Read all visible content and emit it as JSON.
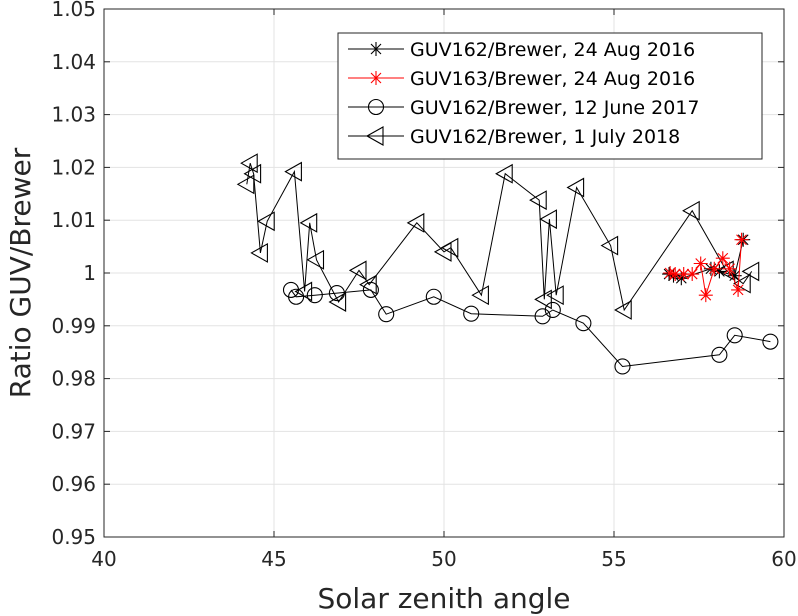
{
  "chart_data": {
    "type": "line",
    "title": "",
    "xlabel": "Solar zenith angle",
    "ylabel": "Ratio GUV/Brewer",
    "xlim": [
      40,
      60
    ],
    "ylim": [
      0.95,
      1.05
    ],
    "xticks": [
      "40",
      "45",
      "50",
      "55",
      "60"
    ],
    "yticks": [
      "0.95",
      "0.96",
      "0.97",
      "0.98",
      "0.99",
      "1",
      "1.01",
      "1.02",
      "1.03",
      "1.04",
      "1.05"
    ],
    "grid": true,
    "legend_position": "top-right",
    "series": [
      {
        "name": "GUV162/Brewer, 24 Aug 2016",
        "color": "#000000",
        "marker": "asterisk",
        "points": [
          [
            56.62,
            0.9998
          ],
          [
            56.75,
            0.9995
          ],
          [
            56.98,
            0.999
          ],
          [
            57.85,
            1.0008
          ],
          [
            58.1,
            1.0003
          ],
          [
            58.55,
            0.9995
          ],
          [
            58.8,
            1.0063
          ]
        ]
      },
      {
        "name": "GUV163/Brewer, 24 Aug 2016",
        "color": "#ff0000",
        "marker": "asterisk",
        "points": [
          [
            56.65,
            1.0
          ],
          [
            56.8,
            0.9998
          ],
          [
            57.05,
            0.9998
          ],
          [
            57.3,
            0.9998
          ],
          [
            57.55,
            1.0018
          ],
          [
            57.7,
            0.9958
          ],
          [
            57.95,
            1.0008
          ],
          [
            58.2,
            1.0028
          ],
          [
            58.4,
            1.0008
          ],
          [
            58.65,
            0.9968
          ],
          [
            58.75,
            1.0063
          ]
        ]
      },
      {
        "name": "GUV162/Brewer, 12 June 2017",
        "color": "#000000",
        "marker": "circle",
        "points": [
          [
            45.5,
            0.9968
          ],
          [
            45.65,
            0.9955
          ],
          [
            46.2,
            0.9958
          ],
          [
            46.85,
            0.9962
          ],
          [
            47.85,
            0.9968
          ],
          [
            48.3,
            0.9922
          ],
          [
            49.7,
            0.9955
          ],
          [
            50.8,
            0.9923
          ],
          [
            52.9,
            0.9918
          ],
          [
            53.2,
            0.993
          ],
          [
            54.1,
            0.9905
          ],
          [
            55.25,
            0.9823
          ],
          [
            58.1,
            0.9845
          ],
          [
            58.55,
            0.9882
          ],
          [
            59.6,
            0.987
          ]
        ]
      },
      {
        "name": "GUV162/Brewer, 1 July 2018",
        "color": "#000000",
        "marker": "triangle-left",
        "points": [
          [
            44.2,
            1.0168
          ],
          [
            44.3,
            1.0208
          ],
          [
            44.4,
            1.0188
          ],
          [
            44.6,
            1.0038
          ],
          [
            44.8,
            1.0098
          ],
          [
            45.6,
            1.0192
          ],
          [
            45.9,
            0.9965
          ],
          [
            46.05,
            1.0095
          ],
          [
            46.25,
            1.0025
          ],
          [
            46.9,
            0.9945
          ],
          [
            47.5,
            1.0005
          ],
          [
            47.8,
            0.9978
          ],
          [
            49.2,
            1.0095
          ],
          [
            50.0,
            1.004
          ],
          [
            50.2,
            1.0048
          ],
          [
            51.1,
            0.9958
          ],
          [
            51.8,
            1.0188
          ],
          [
            52.8,
            1.0138
          ],
          [
            52.95,
            0.995
          ],
          [
            53.1,
            1.0102
          ],
          [
            53.3,
            0.9958
          ],
          [
            53.9,
            1.0162
          ],
          [
            54.9,
            1.0052
          ],
          [
            55.3,
            0.993
          ],
          [
            57.3,
            1.0118
          ],
          [
            58.3,
            1.0005
          ],
          [
            58.8,
            0.998
          ],
          [
            59.05,
            1.0003
          ]
        ]
      }
    ]
  }
}
